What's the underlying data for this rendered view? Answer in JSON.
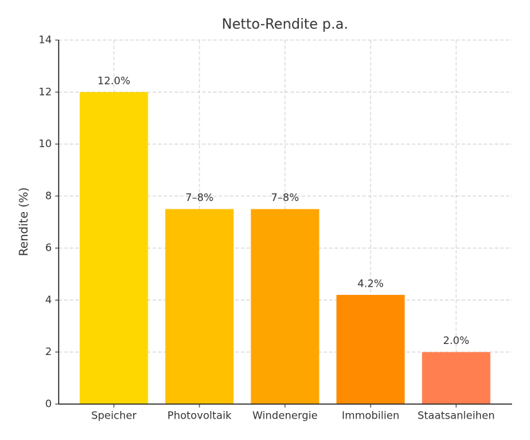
{
  "chart_data": {
    "type": "bar",
    "title": "Netto-Rendite p.a.",
    "ylabel": "Rendite (%)",
    "categories": [
      "Speicher",
      "Photovoltaik",
      "Windenergie",
      "Immobilien",
      "Staatsanleihen"
    ],
    "values": [
      12.0,
      7.5,
      7.5,
      4.2,
      2.0
    ],
    "value_labels": [
      "12.0%",
      "7–8%",
      "7–8%",
      "4.2%",
      "2.0%"
    ],
    "colors": [
      "#ffd700",
      "#ffc000",
      "#ffa500",
      "#ff8c00",
      "#ff7f50"
    ],
    "ylim": [
      0,
      14
    ],
    "yticks": [
      0,
      2,
      4,
      6,
      8,
      10,
      12,
      14
    ],
    "grid": true
  }
}
